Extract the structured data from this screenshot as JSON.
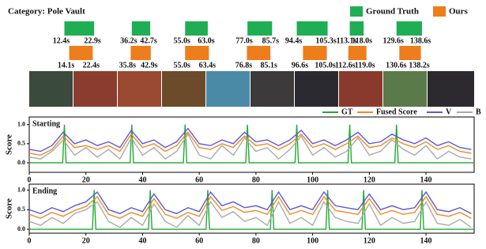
{
  "chart_data": [
    {
      "type": "interval",
      "title": "Category: Pole Vault",
      "xlim": [
        0,
        157
      ],
      "series": [
        {
          "name": "Ground Truth",
          "color": "#1fae54",
          "starts": [
            12.4,
            36.2,
            55.0,
            77.0,
            94.4,
            113.1,
            129.6
          ],
          "ends": [
            22.9,
            42.7,
            63.0,
            85.7,
            105.3,
            118.0,
            138.6
          ],
          "start_labels": [
            "12.4s",
            "36.2s",
            "55.0s",
            "77.0s",
            "94.4s",
            "113.1s",
            "129.6s"
          ],
          "end_labels": [
            "22.9s",
            "42.7s",
            "63.0s",
            "85.7s",
            "105.3s",
            "118.0s",
            "138.6s"
          ]
        },
        {
          "name": "Ours",
          "color": "#ee7d1c",
          "starts": [
            14.1,
            35.8,
            55.0,
            76.8,
            96.6,
            112.6,
            130.6
          ],
          "ends": [
            22.4,
            42.9,
            63.4,
            85.1,
            105.0,
            119.0,
            138.2
          ],
          "start_labels": [
            "14.1s",
            "35.8s",
            "55.0s",
            "76.8s",
            "96.6s",
            "112.6s",
            "130.6s"
          ],
          "end_labels": [
            "22.4s",
            "42.9s",
            "63.4s",
            "85.1s",
            "105.0s",
            "119.0s",
            "138.2s"
          ]
        }
      ]
    },
    {
      "type": "line",
      "title": "Starting",
      "y_label": "Score",
      "xlim": [
        0,
        157
      ],
      "ylim": [
        -0.25,
        1.2
      ],
      "xticks": [
        0,
        20,
        40,
        60,
        80,
        100,
        120,
        140
      ],
      "yticks": [
        {
          "value": 0,
          "label": "0.0"
        },
        {
          "value": 0.5,
          "label": "0.5"
        },
        {
          "value": 1,
          "label": "1.0"
        }
      ],
      "x": [
        0,
        4,
        8,
        12,
        16,
        20,
        24,
        28,
        32,
        36,
        40,
        44,
        48,
        52,
        56,
        60,
        64,
        68,
        72,
        76,
        80,
        84,
        88,
        92,
        96,
        100,
        104,
        108,
        112,
        116,
        120,
        124,
        128,
        132,
        136,
        140,
        144,
        148,
        152,
        156
      ],
      "series": [
        {
          "name": "GT",
          "color": "#22aa33",
          "x": [
            0,
            11.8,
            12.4,
            13.0,
            35.6,
            36.2,
            36.8,
            54.4,
            55.0,
            55.6,
            76.4,
            77.0,
            77.6,
            93.8,
            94.4,
            95.0,
            112.5,
            113.1,
            113.7,
            129.0,
            129.6,
            130.2,
            157
          ],
          "values": [
            0,
            0,
            1,
            0,
            0,
            1,
            0,
            0,
            1,
            0,
            0,
            1,
            0,
            0,
            1,
            0,
            0,
            1,
            0,
            0,
            1,
            0,
            0
          ]
        },
        {
          "name": "Fused Score",
          "color": "#f08a24",
          "values": [
            0.25,
            0.2,
            0.35,
            0.7,
            0.4,
            0.45,
            0.35,
            0.45,
            0.3,
            0.75,
            0.4,
            0.5,
            0.3,
            0.45,
            0.8,
            0.4,
            0.35,
            0.5,
            0.4,
            0.7,
            0.45,
            0.5,
            0.35,
            0.5,
            0.75,
            0.4,
            0.5,
            0.35,
            0.5,
            0.7,
            0.4,
            0.45,
            0.65,
            0.5,
            0.4,
            0.55,
            0.35,
            0.45,
            0.3,
            0.25
          ]
        },
        {
          "name": "V",
          "color": "#5a5adc",
          "values": [
            0.35,
            0.3,
            0.45,
            0.8,
            0.5,
            0.6,
            0.45,
            0.55,
            0.4,
            0.85,
            0.5,
            0.6,
            0.4,
            0.55,
            0.9,
            0.5,
            0.45,
            0.6,
            0.5,
            0.8,
            0.55,
            0.6,
            0.45,
            0.6,
            0.85,
            0.5,
            0.6,
            0.45,
            0.6,
            0.8,
            0.5,
            0.55,
            0.75,
            0.6,
            0.5,
            0.65,
            0.45,
            0.55,
            0.4,
            0.35
          ]
        },
        {
          "name": "B",
          "color": "#aaaaaa",
          "values": [
            0.15,
            0.1,
            0.3,
            0.6,
            0.2,
            0.4,
            0.15,
            0.35,
            0.1,
            0.65,
            0.2,
            0.4,
            0.1,
            0.3,
            0.75,
            0.2,
            0.1,
            0.45,
            0.2,
            0.65,
            0.3,
            0.4,
            0.1,
            0.35,
            0.7,
            0.2,
            0.4,
            0.15,
            0.3,
            0.65,
            0.2,
            0.3,
            0.6,
            0.35,
            0.2,
            0.45,
            0.1,
            0.3,
            0.15,
            0.1
          ]
        }
      ]
    },
    {
      "type": "line",
      "title": "Ending",
      "y_label": "Score",
      "xlim": [
        0,
        157
      ],
      "ylim": [
        -0.1,
        1.15
      ],
      "xticks": [
        0,
        20,
        40,
        60,
        80,
        100,
        120,
        140
      ],
      "yticks": [
        {
          "value": 0,
          "label": "0.0"
        },
        {
          "value": 0.5,
          "label": "0.5"
        },
        {
          "value": 1,
          "label": "1.0"
        }
      ],
      "x": [
        0,
        4,
        8,
        12,
        16,
        20,
        24,
        28,
        32,
        36,
        40,
        44,
        48,
        52,
        56,
        60,
        64,
        68,
        72,
        76,
        80,
        84,
        88,
        92,
        96,
        100,
        104,
        108,
        112,
        116,
        120,
        124,
        128,
        132,
        136,
        140,
        144,
        148,
        152,
        156
      ],
      "series": [
        {
          "color": "#22aa33",
          "x": [
            0,
            22.3,
            22.9,
            23.5,
            42.1,
            42.7,
            43.3,
            62.4,
            63.0,
            63.6,
            85.1,
            85.7,
            86.3,
            104.7,
            105.3,
            105.9,
            117.4,
            118.0,
            118.6,
            138.0,
            138.6,
            139.2,
            157
          ],
          "values": [
            0,
            0,
            1,
            0,
            0,
            1,
            0,
            0,
            1,
            0,
            0,
            1,
            0,
            0,
            1,
            0,
            0,
            1,
            0,
            0,
            1,
            0,
            0
          ]
        },
        {
          "color": "#f08a24",
          "values": [
            0.38,
            0.28,
            0.43,
            0.33,
            0.48,
            0.58,
            0.83,
            0.38,
            0.28,
            0.43,
            0.33,
            0.78,
            0.38,
            0.28,
            0.43,
            0.33,
            0.83,
            0.48,
            0.58,
            0.43,
            0.48,
            0.38,
            0.83,
            0.38,
            0.48,
            0.38,
            0.83,
            0.48,
            0.43,
            0.38,
            0.78,
            0.38,
            0.48,
            0.38,
            0.43,
            0.83,
            0.38,
            0.33,
            0.43,
            0.28
          ]
        },
        {
          "color": "#5a5adc",
          "values": [
            0.5,
            0.4,
            0.55,
            0.45,
            0.6,
            0.7,
            0.95,
            0.5,
            0.4,
            0.55,
            0.45,
            0.9,
            0.5,
            0.4,
            0.55,
            0.45,
            0.95,
            0.6,
            0.7,
            0.55,
            0.6,
            0.5,
            0.95,
            0.5,
            0.6,
            0.5,
            0.95,
            0.6,
            0.55,
            0.5,
            0.9,
            0.5,
            0.6,
            0.5,
            0.55,
            0.95,
            0.5,
            0.45,
            0.55,
            0.4
          ]
        },
        {
          "color": "#aaaaaa",
          "values": [
            0.2,
            0.1,
            0.3,
            0.15,
            0.4,
            0.5,
            0.7,
            0.2,
            0.05,
            0.3,
            0.1,
            0.65,
            0.2,
            0.05,
            0.35,
            0.1,
            0.7,
            0.3,
            0.45,
            0.2,
            0.3,
            0.1,
            0.7,
            0.15,
            0.3,
            0.1,
            0.7,
            0.3,
            0.2,
            0.15,
            0.65,
            0.1,
            0.3,
            0.15,
            0.2,
            0.7,
            0.15,
            0.1,
            0.25,
            0.05
          ]
        }
      ]
    }
  ]
}
